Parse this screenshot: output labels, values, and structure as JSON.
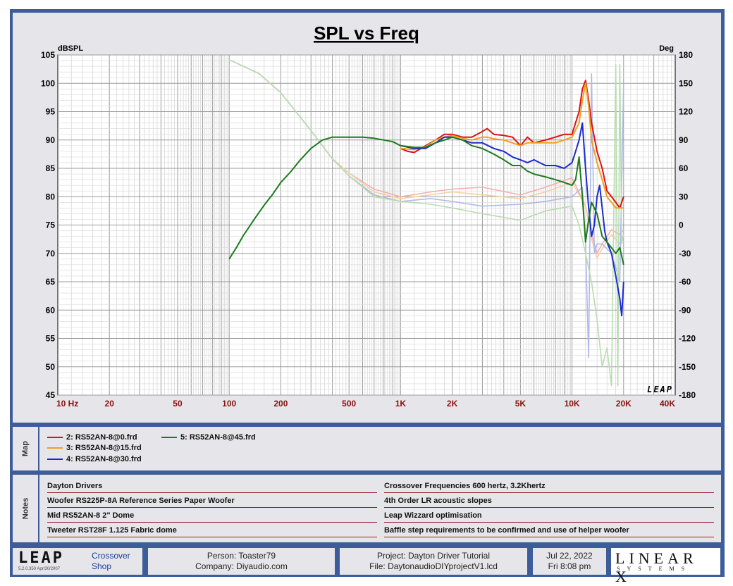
{
  "chart_data": {
    "type": "line",
    "title": "SPL vs Freq",
    "ylabel_left": "dBSPL",
    "ylabel_right": "Deg",
    "x_scale": "log",
    "xlim": [
      10,
      40000
    ],
    "ylim_left": [
      45,
      105
    ],
    "ylim_right": [
      -180,
      180
    ],
    "grid": true,
    "x_ticks": [
      {
        "v": 10,
        "label": "10  Hz"
      },
      {
        "v": 20,
        "label": "20"
      },
      {
        "v": 50,
        "label": "50"
      },
      {
        "v": 100,
        "label": "100"
      },
      {
        "v": 200,
        "label": "200"
      },
      {
        "v": 500,
        "label": "500"
      },
      {
        "v": 1000,
        "label": "1K"
      },
      {
        "v": 2000,
        "label": "2K"
      },
      {
        "v": 5000,
        "label": "5K"
      },
      {
        "v": 10000,
        "label": "10K"
      },
      {
        "v": 20000,
        "label": "20K"
      },
      {
        "v": 40000,
        "label": "40K"
      }
    ],
    "y_ticks_left": [
      "105",
      "100",
      "95",
      "90",
      "85",
      "80",
      "75",
      "70",
      "65",
      "60",
      "55",
      "50",
      "45"
    ],
    "y_ticks_right": [
      "180",
      "150",
      "120",
      "90",
      "60",
      "30",
      "0",
      "-30",
      "-60",
      "-90",
      "-120",
      "-150",
      "-180"
    ],
    "watermark": "LEAP",
    "series": [
      {
        "name": "2: RS52AN-8@0.frd",
        "color": "#dd1111",
        "axis": "spl",
        "x": [
          1000,
          1100,
          1200,
          1400,
          1600,
          1800,
          2000,
          2300,
          2600,
          3000,
          3200,
          3500,
          4000,
          4500,
          5000,
          5500,
          6000,
          7000,
          8000,
          9000,
          10000,
          11000,
          11500,
          12000,
          12500,
          13000,
          14000,
          15000,
          16000,
          17000,
          18000,
          19000,
          20000
        ],
        "values": [
          88.5,
          88,
          87.8,
          89,
          90,
          91,
          91,
          90.5,
          90.5,
          91.5,
          92,
          91,
          90.8,
          90.5,
          89,
          90.5,
          89.5,
          90,
          90.5,
          91,
          91,
          95,
          99,
          100.5,
          97,
          93,
          88,
          85,
          81,
          80,
          79,
          78,
          80
        ]
      },
      {
        "name": "3: RS52AN-8@15.frd",
        "color": "#f0a020",
        "axis": "spl",
        "x": [
          1000,
          1200,
          1400,
          1600,
          1800,
          2000,
          2300,
          2600,
          3000,
          3200,
          3500,
          4000,
          4500,
          5000,
          5500,
          6000,
          7000,
          8000,
          9000,
          10000,
          11000,
          11500,
          12000,
          12500,
          13000,
          14000,
          15000,
          16000,
          17000,
          18000,
          19000,
          20000
        ],
        "values": [
          88.5,
          88.3,
          88.8,
          90,
          90.5,
          90.8,
          90.3,
          90,
          90.5,
          90.5,
          90.2,
          90,
          89.5,
          89,
          89.5,
          89.5,
          89.5,
          89.5,
          90,
          90.5,
          93,
          97,
          100,
          96,
          90,
          86,
          83,
          80,
          79,
          78,
          78,
          78
        ]
      },
      {
        "name": "4: RS52AN-8@30.frd",
        "color": "#1a2ad0",
        "axis": "spl",
        "x": [
          1000,
          1200,
          1400,
          1600,
          1800,
          2000,
          2300,
          2600,
          3000,
          3500,
          4000,
          4500,
          5000,
          5500,
          6000,
          7000,
          8000,
          9000,
          10000,
          10500,
          11000,
          11500,
          12000,
          12500,
          13000,
          13500,
          14000,
          14500,
          15000,
          15500,
          16000,
          17000,
          18000,
          19000,
          19500,
          20000
        ],
        "values": [
          89,
          88.5,
          88.5,
          89.5,
          90.5,
          90.5,
          90,
          89.5,
          89.5,
          88.5,
          88,
          87,
          86.5,
          86,
          86.5,
          85.5,
          85.5,
          85,
          86,
          88,
          90,
          93,
          85,
          78,
          73,
          75,
          80,
          82,
          78,
          74,
          72,
          70,
          66,
          62,
          59,
          65
        ]
      },
      {
        "name": "5: RS52AN-8@45.frd",
        "color": "#1d7a1d",
        "axis": "spl",
        "x": [
          100,
          110,
          120,
          140,
          160,
          180,
          200,
          230,
          260,
          300,
          350,
          400,
          450,
          500,
          600,
          700,
          800,
          900,
          1000,
          1200,
          1400,
          1600,
          1800,
          2000,
          2300,
          2600,
          3000,
          3500,
          4000,
          4500,
          5000,
          5500,
          6000,
          7000,
          8000,
          9000,
          10000,
          10500,
          11000,
          11500,
          12000,
          12500,
          13000,
          14000,
          15000,
          16000,
          17000,
          18000,
          19000,
          20000
        ],
        "values": [
          69,
          71,
          73,
          76,
          78.5,
          80.5,
          82.5,
          84.5,
          86.5,
          88.5,
          90,
          90.5,
          90.5,
          90.5,
          90.5,
          90.3,
          90,
          89.7,
          89,
          88.7,
          88.7,
          89.5,
          90,
          90.5,
          90,
          89,
          88.5,
          87.5,
          86.5,
          85.5,
          85.5,
          84.5,
          84,
          83.5,
          83,
          82.5,
          82,
          83,
          87,
          80,
          72,
          76,
          79,
          77,
          73,
          72,
          71,
          70,
          71,
          68
        ]
      },
      {
        "name": "2: RS52AN-8@0.frd phase",
        "color": "#f2b0b0",
        "axis": "phase",
        "x": [
          100,
          150,
          200,
          300,
          400,
          500,
          700,
          1000,
          1500,
          2000,
          3000,
          5000,
          7000,
          10000,
          12000,
          13000,
          14000,
          15000,
          17000,
          19000,
          20000
        ],
        "values": [
          175,
          160,
          140,
          100,
          70,
          55,
          38,
          30,
          35,
          38,
          40,
          32,
          40,
          50,
          20,
          -10,
          -30,
          -20,
          -5,
          -10,
          -5
        ]
      },
      {
        "name": "3: RS52AN-8@15.frd phase",
        "color": "#f5d0a0",
        "axis": "phase",
        "x": [
          100,
          150,
          200,
          300,
          400,
          500,
          700,
          1000,
          1500,
          2000,
          3000,
          5000,
          7000,
          10000,
          12000,
          13000,
          14000,
          15000,
          17000,
          19000,
          20000
        ],
        "values": [
          175,
          160,
          140,
          100,
          70,
          55,
          35,
          28,
          32,
          35,
          32,
          28,
          35,
          45,
          20,
          -15,
          -35,
          -25,
          -10,
          -20,
          -10
        ]
      },
      {
        "name": "4: RS52AN-8@30.frd phase",
        "color": "#b0b8e8",
        "axis": "phase",
        "x": [
          100,
          150,
          200,
          300,
          400,
          500,
          700,
          1000,
          1500,
          2000,
          3000,
          5000,
          7000,
          10000,
          11500,
          12000,
          12500,
          13000,
          13500,
          14000,
          15000,
          17000,
          19000,
          20000
        ],
        "values": [
          175,
          160,
          140,
          100,
          70,
          52,
          32,
          25,
          28,
          25,
          20,
          22,
          25,
          30,
          40,
          -20,
          -140,
          160,
          -30,
          -20,
          -20,
          -30,
          -60,
          150
        ]
      },
      {
        "name": "5: RS52AN-8@45.frd phase",
        "color": "#b8dcb0",
        "axis": "phase",
        "x": [
          100,
          150,
          200,
          300,
          400,
          500,
          700,
          1000,
          1500,
          2000,
          3000,
          5000,
          7000,
          10000,
          11000,
          12000,
          13000,
          14000,
          15000,
          16000,
          17000,
          18000,
          18500,
          19000,
          19500,
          20000
        ],
        "values": [
          175,
          160,
          140,
          100,
          70,
          52,
          30,
          25,
          22,
          18,
          12,
          5,
          15,
          20,
          0,
          -30,
          -60,
          -100,
          -150,
          -130,
          -170,
          170,
          -170,
          170,
          -20,
          -10
        ]
      }
    ]
  },
  "map": {
    "label": "Map",
    "legend": [
      {
        "text": "2:  RS52AN-8@0.frd",
        "color": "#dd1111"
      },
      {
        "text": "3: RS52AN-8@15.frd",
        "color": "#f0a020"
      },
      {
        "text": "4: RS52AN-8@30.frd",
        "color": "#1a2ad0"
      },
      {
        "text": "5: RS52AN-8@45.frd",
        "color": "#1d7a1d"
      }
    ]
  },
  "notes": {
    "label": "Notes",
    "left": [
      "Dayton Drivers",
      "Woofer RS225P-8A Reference Series Paper Woofer",
      "Mid RS52AN-8 2\" Dome",
      "Tweeter RST28F 1.125 Fabric dome"
    ],
    "right": [
      "Crossover Frequencies 600 hertz, 3.2Khertz",
      "4th Order LR acoustic slopes",
      "Leap Wizzard optimisation",
      "Baffle step requirements to be confirmed and use of helper woofer"
    ]
  },
  "footer": {
    "logo": "LEAP",
    "version": "5.2.0.350   Apr/30/2007",
    "module_line1": "Crossover",
    "module_line2": "Shop",
    "person": "Person: Toaster79",
    "company": "Company: Diyaudio.com",
    "project": "Project: Dayton Driver Tutorial",
    "file": "File: DaytonaudioDIYprojectV1.lcd",
    "date": "Jul 22, 2022",
    "time": "Fri  8:08 pm",
    "brand": "LINEAR X",
    "brand_sub": "SYSTEMS"
  }
}
